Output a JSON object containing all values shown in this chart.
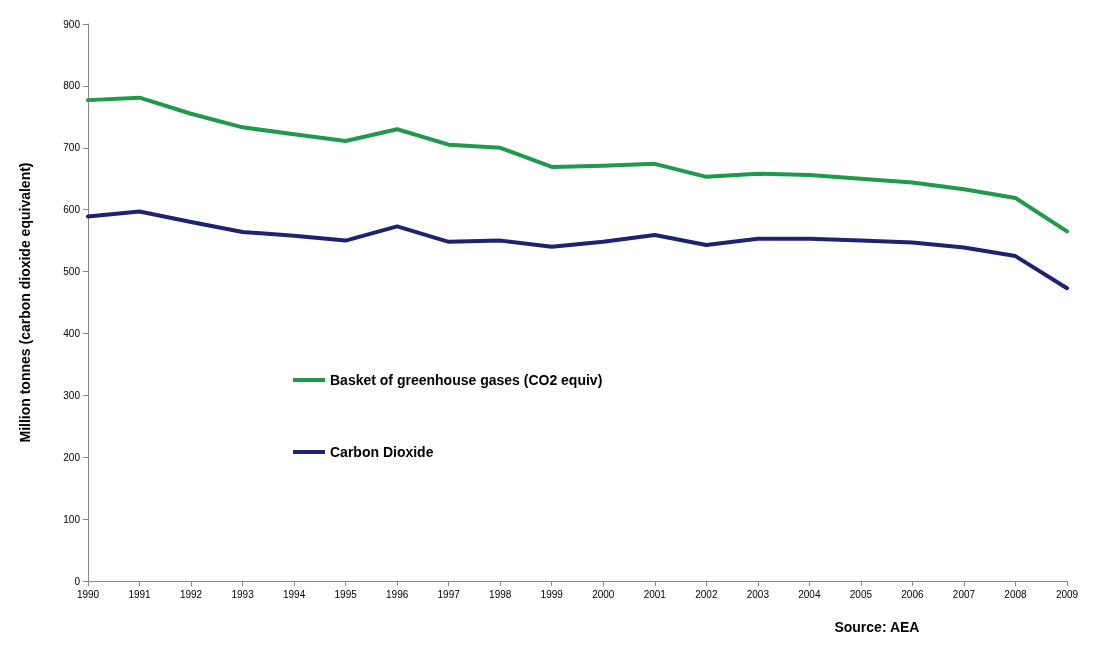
{
  "chart_data": {
    "type": "line",
    "ylabel": "Million tonnes (carbon dioxide equivalent)",
    "categories": [
      "1990",
      "1991",
      "1992",
      "1993",
      "1994",
      "1995",
      "1996",
      "1997",
      "1998",
      "1999",
      "2000",
      "2001",
      "2002",
      "2003",
      "2004",
      "2005",
      "2006",
      "2007",
      "2008",
      "2009"
    ],
    "series": [
      {
        "name": "Basket of greenhouse gases (CO2 equiv)",
        "color": "#1e9a4a",
        "values": [
          777,
          781,
          755,
          733,
          722,
          711,
          730,
          705,
          700,
          669,
          671,
          674,
          653,
          658,
          656,
          650,
          644,
          633,
          619,
          565
        ]
      },
      {
        "name": "Carbon Dioxide",
        "color": "#1c2470",
        "values": [
          589,
          597,
          580,
          564,
          558,
          550,
          573,
          548,
          550,
          540,
          548,
          559,
          543,
          553,
          553,
          550,
          547,
          539,
          525,
          473
        ]
      }
    ],
    "ylim": [
      0,
      900
    ],
    "yticks": [
      0,
      100,
      200,
      300,
      400,
      500,
      600,
      700,
      800,
      900
    ],
    "grid": false,
    "legend": "center left",
    "marker": "none",
    "line_style": "solid",
    "annotations": [
      "Source: AEA"
    ]
  }
}
